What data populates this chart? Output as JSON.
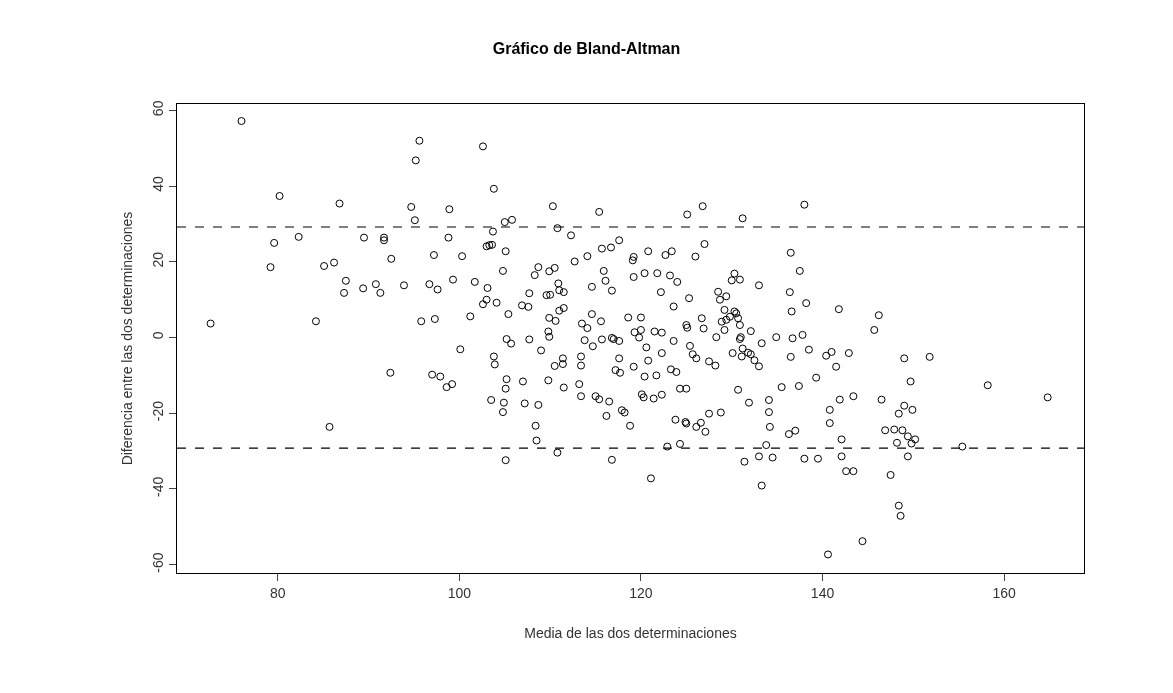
{
  "chart_data": {
    "type": "scatter",
    "title": "Gráfico de Bland-Altman",
    "xlabel": "Media de las dos determinaciones",
    "ylabel": "Diferencia entre las dos determinaciones",
    "marker": "circle",
    "color": "#000000",
    "x": [
      72.6,
      76.0,
      80.2,
      86.8,
      79.6,
      79.2,
      82.3,
      89.5,
      85.1,
      86.2,
      87.5,
      87.3,
      89.4,
      90.8,
      91.3,
      91.7,
      91.7,
      84.2,
      85.7,
      92.5,
      92.4,
      93.9,
      94.7,
      95.1,
      95.2,
      95.6,
      95.8,
      97.3,
      96.7,
      97.6,
      97.2,
      97.0,
      97.9,
      98.6,
      99.2,
      98.8,
      98.9,
      99.3,
      100.1,
      100.3,
      101.2,
      101.7,
      102.6,
      102.6,
      103.0,
      103.1,
      103.0,
      103.3,
      103.6,
      103.8,
      103.7,
      104.1,
      103.8,
      103.9,
      103.5,
      104.8,
      105.1,
      105.0,
      105.8,
      105.4,
      105.2,
      105.7,
      105.2,
      105.1,
      104.9,
      104.8,
      105.1,
      107.0,
      107.2,
      108.7,
      106.9,
      107.6,
      107.7,
      107.7,
      108.3,
      108.7,
      109.0,
      108.4,
      108.5,
      109.8,
      109.9,
      110.5,
      110.3,
      110.8,
      109.6,
      110.0,
      110.9,
      111.0,
      111.5,
      111.0,
      111.5,
      109.9,
      110.6,
      109.8,
      109.9,
      111.4,
      110.5,
      111.4,
      111.5,
      110.8,
      112.3,
      112.7,
      114.1,
      114.6,
      114.6,
      113.5,
      114.1,
      115.6,
      113.8,
      114.7,
      113.4,
      113.4,
      113.2,
      113.4,
      115.0,
      115.4,
      115.4,
      115.7,
      116.7,
      117.6,
      115.9,
      116.1,
      116.8,
      115.7,
      116.8,
      117.0,
      117.6,
      117.6,
      117.2,
      117.7,
      116.5,
      116.2,
      117.9,
      118.2,
      118.8,
      116.8,
      119.2,
      119.1,
      120.8,
      119.2,
      120.4,
      121.8,
      122.2,
      118.6,
      120.0,
      119.3,
      120.0,
      119.8,
      120.6,
      120.8,
      119.2,
      120.4,
      121.7,
      122.3,
      121.5,
      122.3,
      120.1,
      120.3,
      121.4,
      122.3,
      121.1,
      122.9,
      124.3,
      122.7,
      123.4,
      123.2,
      124.0,
      123.6,
      123.6,
      123.3,
      123.9,
      124.3,
      125.0,
      123.8,
      124.9,
      125.0,
      126.1,
      126.6,
      127.1,
      127.5,
      125.3,
      125.0,
      125.1,
      126.0,
      125.1,
      126.8,
      127.0,
      126.7,
      126.9,
      125.4,
      125.7,
      126.1,
      127.5,
      128.2,
      128.3,
      128.8,
      131.2,
      128.5,
      128.7,
      129.4,
      129.2,
      128.9,
      129.4,
      129.8,
      129.2,
      130.3,
      130.0,
      130.9,
      130.3,
      130.5,
      130.7,
      130.9,
      131.0,
      130.9,
      130.1,
      131.1,
      131.2,
      131.8,
      132.1,
      132.5,
      133.0,
      132.1,
      133.3,
      133.0,
      130.7,
      131.9,
      134.1,
      134.1,
      134.2,
      133.8,
      133.0,
      134.5,
      131.4,
      133.3,
      134.9,
      135.5,
      136.3,
      137.0,
      136.5,
      137.5,
      136.4,
      136.6,
      138.2,
      136.7,
      137.8,
      136.5,
      137.4,
      138.0,
      138.5,
      138.0,
      139.5,
      139.3,
      140.4,
      141.0,
      141.5,
      142.9,
      141.8,
      140.8,
      140.8,
      141.9,
      143.4,
      142.1,
      142.1,
      142.6,
      143.4,
      140.6,
      144.4,
      146.2,
      145.7,
      149.0,
      151.8,
      149.7,
      146.5,
      149.0,
      148.4,
      149.9,
      146.9,
      147.9,
      148.8,
      149.4,
      150.2,
      149.8,
      148.2,
      149.4,
      147.5,
      148.4,
      148.6,
      155.4,
      158.2,
      164.8
    ],
    "values": [
      3.7,
      57.2,
      37.4,
      35.4,
      25.0,
      18.6,
      26.6,
      26.4,
      18.9,
      19.8,
      15.0,
      11.8,
      13.0,
      14.1,
      11.8,
      26.4,
      25.7,
      4.3,
      -23.6,
      20.8,
      -9.3,
      13.8,
      34.5,
      31.0,
      46.8,
      52.0,
      4.3,
      4.9,
      14.1,
      12.7,
      21.8,
      -9.8,
      -10.3,
      -13.1,
      -12.3,
      26.4,
      33.9,
      15.3,
      -3.1,
      21.5,
      5.6,
      14.7,
      50.5,
      8.8,
      10.0,
      13.1,
      24.1,
      24.4,
      24.5,
      39.3,
      28.0,
      9.2,
      -5.0,
      -7.1,
      -16.5,
      17.6,
      22.8,
      30.5,
      31.1,
      6.2,
      -0.4,
      -1.6,
      -11.0,
      -13.5,
      -17.2,
      -19.7,
      -32.4,
      -11.6,
      -17.4,
      -17.8,
      8.5,
      8.1,
      11.7,
      -0.5,
      16.5,
      18.6,
      -3.4,
      -23.3,
      -27.2,
      -11.3,
      17.5,
      18.4,
      34.7,
      28.9,
      11.2,
      11.3,
      14.3,
      12.5,
      12.0,
      7.1,
      7.8,
      5.2,
      4.4,
      1.6,
      0.2,
      -5.5,
      -7.5,
      -7.0,
      -13.2,
      -30.4,
      27.0,
      20.1,
      21.5,
      13.4,
      6.2,
      3.7,
      2.5,
      4.3,
      -0.7,
      -2.3,
      -5.0,
      -7.4,
      -12.3,
      -15.5,
      -15.5,
      -16.3,
      33.2,
      23.5,
      23.8,
      25.7,
      17.6,
      15.0,
      12.4,
      -0.5,
      -0.1,
      -0.4,
      -0.9,
      -5.5,
      -8.6,
      -9.3,
      -16.9,
      -20.7,
      -19.2,
      -19.8,
      -23.3,
      -32.3,
      21.3,
      20.4,
      22.8,
      16.0,
      17.0,
      17.0,
      12.0,
      5.3,
      5.3,
      1.4,
      2.0,
      0.0,
      -2.6,
      -6.1,
      -7.7,
      -10.3,
      -10.0,
      -4.1,
      1.6,
      1.3,
      -15.0,
      -15.8,
      -16.1,
      -15.1,
      -37.2,
      -28.8,
      -28.1,
      21.8,
      22.8,
      16.4,
      14.7,
      8.2,
      -0.9,
      -8.4,
      -9.1,
      -13.5,
      -13.5,
      -21.7,
      -22.3,
      -22.7,
      -23.6,
      -22.5,
      -24.9,
      -20.1,
      10.4,
      3.3,
      2.6,
      21.4,
      32.5,
      34.7,
      24.7,
      5.1,
      2.4,
      -2.2,
      -4.4,
      -5.5,
      -6.3,
      -7.4,
      0.1,
      -19.8,
      31.5,
      12.1,
      10.0,
      10.9,
      7.3,
      4.2,
      4.7,
      5.5,
      2.0,
      16.9,
      15.1,
      15.3,
      6.9,
      6.4,
      5.1,
      3.3,
      0.1,
      -0.4,
      -4.1,
      -5.0,
      -2.9,
      -4.0,
      -4.4,
      -6.0,
      -7.6,
      1.7,
      -1.5,
      13.8,
      -13.8,
      -17.2,
      -16.5,
      -19.7,
      -23.6,
      -28.4,
      -31.4,
      -31.7,
      -32.8,
      -39.1,
      0.1,
      -13.1,
      -25.5,
      -24.6,
      22.4,
      17.6,
      12.0,
      6.9,
      9.1,
      -0.2,
      0.7,
      -5.1,
      -12.8,
      35.1,
      -3.2,
      -32.0,
      -32.0,
      -10.6,
      -4.8,
      -3.8,
      -7.7,
      -4.1,
      7.5,
      -19.1,
      -22.6,
      -16.4,
      -15.5,
      -26.9,
      -31.4,
      -35.3,
      -35.3,
      -57.3,
      -53.8,
      5.9,
      2.0,
      -5.5,
      -5.1,
      -11.6,
      -16.4,
      -18.0,
      -20.1,
      -19.1,
      -24.5,
      -24.3,
      -24.5,
      -26.1,
      -26.9,
      -28.0,
      -27.8,
      -31.4,
      -36.3,
      -44.4,
      -47.1,
      -28.8,
      -12.6,
      -15.8
    ],
    "xlim": [
      68.9,
      168.8
    ],
    "ylim": [
      -62.2,
      61.7
    ],
    "xticks": [
      80,
      100,
      120,
      140,
      160
    ],
    "yticks": [
      -60,
      -40,
      -20,
      0,
      20,
      40,
      60
    ],
    "ref_lines": [
      {
        "axis": "y",
        "value": 29.2,
        "line_style": "dashed"
      },
      {
        "axis": "y",
        "value": -29.2,
        "line_style": "dashed"
      }
    ]
  }
}
